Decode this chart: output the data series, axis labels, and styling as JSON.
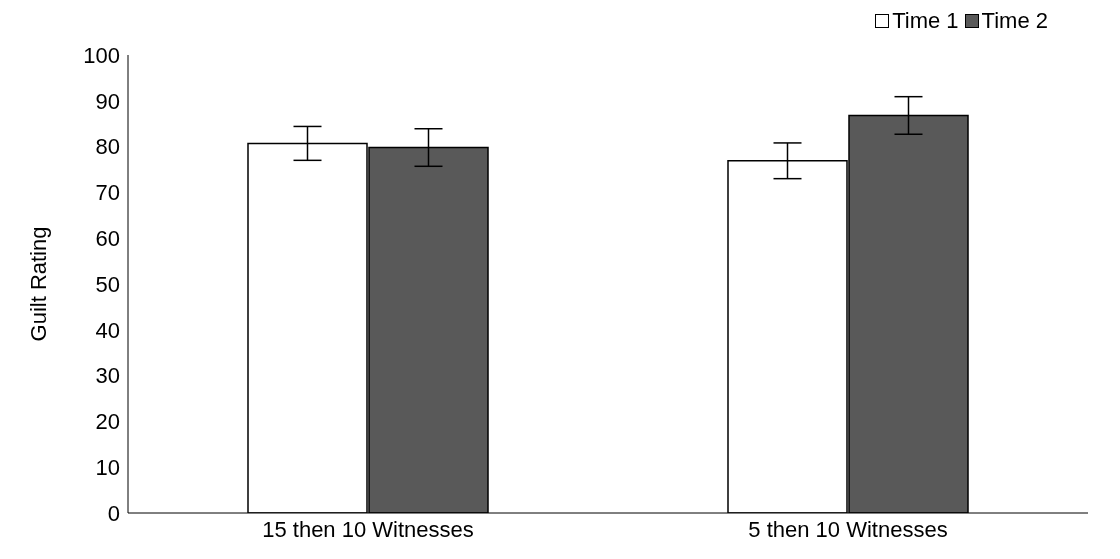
{
  "chart_data": {
    "type": "bar",
    "ylabel": "Guilt Rating",
    "categories": [
      "15 then 10 Witnesses",
      "5 then 10 Witnesses"
    ],
    "series": [
      {
        "name": "Time 1",
        "color": "#ffffff",
        "values": [
          80.7,
          76.9
        ],
        "errors": [
          3.7,
          3.9
        ]
      },
      {
        "name": "Time 2",
        "color": "#595959",
        "values": [
          79.8,
          86.8
        ],
        "errors": [
          4.1,
          4.1
        ]
      }
    ],
    "ylim": [
      0,
      100
    ],
    "yticks": [
      0,
      10,
      20,
      30,
      40,
      50,
      60,
      70,
      80,
      90,
      100
    ],
    "grid": false,
    "legend": "top right"
  }
}
